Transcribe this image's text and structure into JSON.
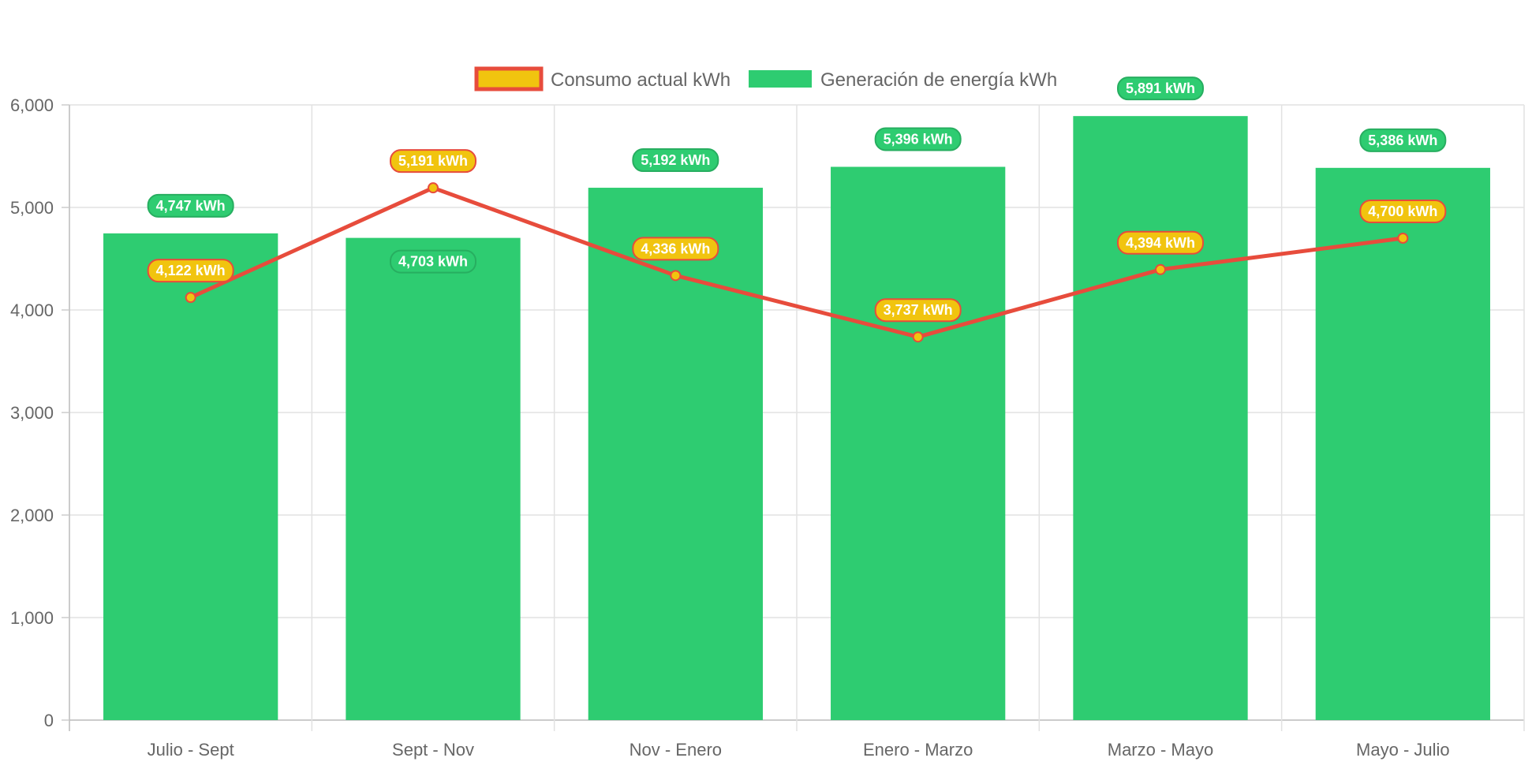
{
  "chart_data": {
    "type": "bar",
    "categories": [
      "Julio - Sept",
      "Sept - Nov",
      "Nov - Enero",
      "Enero - Marzo",
      "Marzo - Mayo",
      "Mayo - Julio"
    ],
    "series": [
      {
        "name": "Consumo actual kWh",
        "type": "line",
        "values": [
          4122,
          5191,
          4336,
          3737,
          4394,
          4700
        ],
        "labels": [
          "4,122 kWh",
          "5,191 kWh",
          "4,336 kWh",
          "3,737 kWh",
          "4,394 kWh",
          "4,700 kWh"
        ],
        "color": "#e74c3c",
        "fill": "#f1c40f"
      },
      {
        "name": "Generación de energía kWh",
        "type": "bar",
        "values": [
          4747,
          4703,
          5192,
          5396,
          5891,
          5386
        ],
        "labels": [
          "4,747 kWh",
          "4,703 kWh",
          "5,192 kWh",
          "5,396 kWh",
          "5,891 kWh",
          "5,386 kWh"
        ],
        "color": "#2ecc71"
      }
    ],
    "yticks": [
      "0",
      "1,000",
      "2,000",
      "3,000",
      "4,000",
      "5,000",
      "6,000"
    ],
    "ylim": [
      0,
      6000
    ],
    "grid": true,
    "legend": "top"
  }
}
